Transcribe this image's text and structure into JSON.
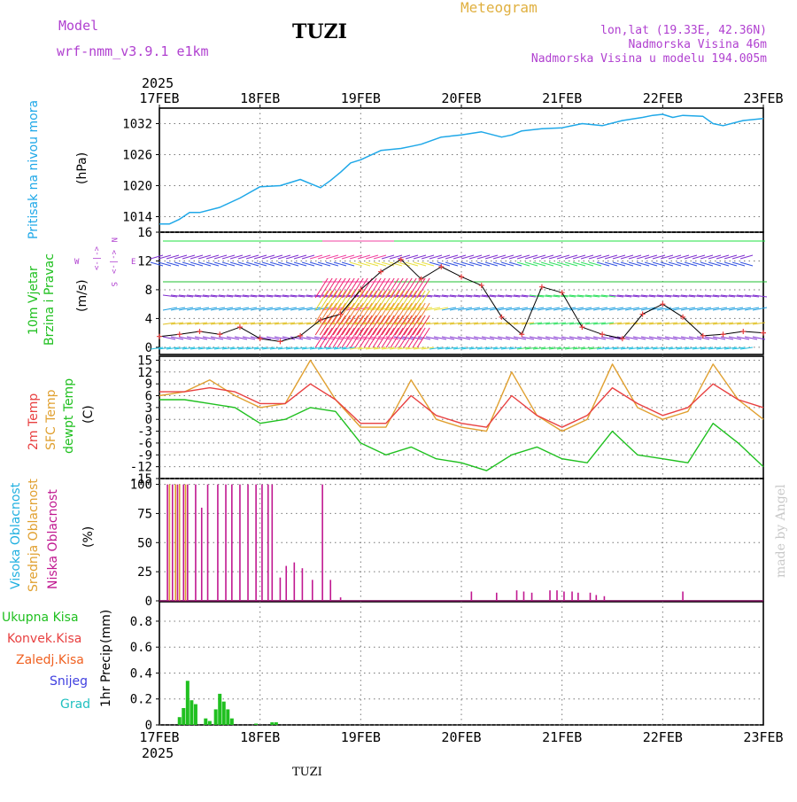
{
  "header": {
    "model_label": "Model",
    "model_name": "wrf-nmm_v3.9.1  e1km",
    "station": "TUZI",
    "chart_title": "Meteogram",
    "lonlat": "lon,lat (19.33E, 42.36N)",
    "elevation": "Nadmorska Visina 46m",
    "model_elevation": "Nadmorska Visina u modelu 194.005m",
    "year": "2025",
    "footer_station": "TUZI",
    "credit": "made by Angel"
  },
  "colors": {
    "pressure": "#1fa8e8",
    "temp2m": "#e84040",
    "sfc": "#e0a030",
    "dewpt": "#20c020",
    "cloud_high": "#20b0e0",
    "cloud_mid": "#e0a030",
    "cloud_low": "#c01890",
    "precip_total": "#20c020",
    "precip_conv": "#e84040",
    "precip_grid": "#f06020",
    "precip_snow": "#4040e0",
    "precip_hail": "#20c0c0",
    "header_purple": "#b040d0",
    "title_gold": "#e0b040"
  },
  "time_axis": {
    "ticks": [
      "17FEB",
      "18FEB",
      "19FEB",
      "20FEB",
      "21FEB",
      "22FEB",
      "23FEB"
    ]
  },
  "chart_data": [
    {
      "type": "line",
      "panel": "pressure",
      "ylabel": "Pritisak na nivou mora",
      "unit": "(hPa)",
      "yticks": [
        1014,
        1020,
        1026,
        1032
      ],
      "ylim": [
        1011,
        1035
      ],
      "grid": true,
      "x": [
        0,
        0.1,
        0.2,
        0.3,
        0.4,
        0.6,
        0.8,
        1.0,
        1.2,
        1.4,
        1.5,
        1.6,
        1.7,
        1.8,
        1.9,
        2.0,
        2.2,
        2.4,
        2.5,
        2.6,
        2.8,
        3.0,
        3.2,
        3.4,
        3.5,
        3.6,
        3.8,
        4.0,
        4.2,
        4.4,
        4.6,
        4.8,
        4.9,
        5.0,
        5.1,
        5.2,
        5.4,
        5.5,
        5.6,
        5.8,
        6.0
      ],
      "series": [
        {
          "name": "",
          "values": [
            1012.6,
            1012.6,
            1013.5,
            1014.8,
            1014.8,
            1015.8,
            1017.6,
            1019.8,
            1020.0,
            1021.2,
            1020.4,
            1019.6,
            1021.0,
            1022.6,
            1024.4,
            1025.0,
            1026.8,
            1027.2,
            1027.6,
            1028.0,
            1029.4,
            1029.8,
            1030.4,
            1029.4,
            1029.8,
            1030.6,
            1031.0,
            1031.2,
            1032.0,
            1031.6,
            1032.6,
            1033.2,
            1033.6,
            1033.8,
            1033.2,
            1033.6,
            1033.4,
            1032.0,
            1031.6,
            1032.6,
            1033.0
          ]
        }
      ]
    },
    {
      "type": "line",
      "panel": "wind",
      "ylabel": "10m Vjetar Brzina i Pravac",
      "unit": "(m/s)",
      "direction_legend": "W <-|-> E  S<-|->N",
      "yticks": [
        0,
        4,
        8,
        12,
        16
      ],
      "ylim": [
        -1,
        16
      ],
      "grid": true,
      "x": [
        0,
        0.2,
        0.4,
        0.6,
        0.8,
        1.0,
        1.2,
        1.4,
        1.6,
        1.8,
        2.0,
        2.2,
        2.4,
        2.6,
        2.8,
        3.0,
        3.2,
        3.4,
        3.6,
        3.8,
        4.0,
        4.2,
        4.4,
        4.6,
        4.8,
        5.0,
        5.2,
        5.4,
        5.6,
        5.8,
        6.0
      ],
      "series": [
        {
          "name": "",
          "values": [
            1.5,
            1.8,
            2.2,
            1.8,
            2.8,
            1.2,
            0.8,
            1.6,
            3.8,
            4.6,
            8.0,
            10.5,
            12.2,
            9.5,
            11.2,
            9.8,
            8.6,
            4.2,
            1.8,
            8.4,
            7.6,
            2.8,
            1.8,
            1.2,
            4.6,
            6.0,
            4.2,
            1.6,
            1.8,
            2.2,
            2.0
          ]
        }
      ]
    },
    {
      "type": "line",
      "panel": "temperature",
      "unit": "(C)",
      "yticks": [
        -15,
        -12,
        -9,
        -6,
        -3,
        0,
        3,
        6,
        9,
        12,
        15
      ],
      "ylim": [
        -15,
        16
      ],
      "grid": true,
      "x": [
        0,
        0.25,
        0.5,
        0.75,
        1.0,
        1.25,
        1.5,
        1.75,
        2.0,
        2.25,
        2.5,
        2.75,
        3.0,
        3.25,
        3.5,
        3.75,
        4.0,
        4.25,
        4.5,
        4.75,
        5.0,
        5.25,
        5.5,
        5.75,
        6.0
      ],
      "series": [
        {
          "name": "2m Temp",
          "values": [
            7,
            7,
            8,
            7,
            4,
            4,
            9,
            5,
            -1,
            -1,
            6,
            1,
            -1,
            -2,
            6,
            1,
            -2,
            1,
            8,
            4,
            1,
            3,
            9,
            5,
            3
          ]
        },
        {
          "name": "SFC Temp",
          "values": [
            6,
            7,
            10,
            6,
            3,
            4,
            15,
            5,
            -2,
            -2,
            10,
            0,
            -2,
            -3,
            12,
            1,
            -3,
            0,
            14,
            3,
            0,
            2,
            14,
            5,
            0
          ]
        },
        {
          "name": "dewpt Temp",
          "values": [
            5,
            5,
            4,
            3,
            -1,
            0,
            3,
            2,
            -6,
            -9,
            -7,
            -10,
            -11,
            -13,
            -9,
            -7,
            -10,
            -11,
            -3,
            -9,
            -10,
            -11,
            -1,
            -6,
            -12
          ]
        }
      ]
    },
    {
      "type": "bar",
      "panel": "cloud",
      "unit": "(%)",
      "yticks": [
        0,
        25,
        50,
        75,
        100
      ],
      "ylim": [
        0,
        105
      ],
      "grid": true,
      "series": [
        {
          "name": "Visoka Oblacnost",
          "x": [],
          "values": []
        },
        {
          "name": "Srednja Oblacnost",
          "x": [
            0.1,
            0.16,
            0.2,
            0.26
          ],
          "values": [
            100,
            100,
            100,
            100
          ]
        },
        {
          "name": "Niska Oblacnost",
          "x": [
            0.08,
            0.13,
            0.18,
            0.24,
            0.28,
            0.36,
            0.42,
            0.48,
            0.58,
            0.66,
            0.72,
            0.8,
            0.88,
            0.96,
            1.02,
            1.08,
            1.12,
            1.2,
            1.26,
            1.34,
            1.42,
            1.52,
            1.62,
            1.7,
            1.8,
            3.1,
            3.35,
            3.55,
            3.62,
            3.7,
            3.88,
            3.95,
            4.02,
            4.1,
            4.16,
            4.28,
            4.34,
            4.42,
            5.2
          ],
          "values": [
            100,
            100,
            100,
            100,
            100,
            100,
            80,
            100,
            100,
            100,
            100,
            100,
            100,
            100,
            100,
            100,
            100,
            20,
            30,
            33,
            28,
            18,
            100,
            18,
            3,
            8,
            7,
            9,
            8,
            7,
            9,
            9,
            8,
            8,
            7,
            7,
            5,
            4,
            8
          ]
        }
      ]
    },
    {
      "type": "bar",
      "panel": "precip",
      "ylabel": "1hr Precip",
      "unit": "(mm)",
      "yticks": [
        0,
        0.2,
        0.4,
        0.6,
        0.8
      ],
      "ylim": [
        0,
        0.95
      ],
      "grid": true,
      "series": [
        {
          "name": "Ukupna Kisa",
          "x": [
            0.2,
            0.24,
            0.28,
            0.32,
            0.36,
            0.46,
            0.5,
            0.56,
            0.6,
            0.64,
            0.68,
            0.72,
            0.96,
            1.12,
            1.16
          ],
          "values": [
            0.06,
            0.13,
            0.34,
            0.19,
            0.16,
            0.05,
            0.03,
            0.12,
            0.24,
            0.18,
            0.12,
            0.05,
            0.01,
            0.02,
            0.02
          ]
        },
        {
          "name": "Konvek.Kisa",
          "x": [],
          "values": []
        },
        {
          "name": "Zaledj.Kisa",
          "x": [],
          "values": []
        },
        {
          "name": "Snijeg",
          "x": [],
          "values": []
        },
        {
          "name": "Grad",
          "x": [],
          "values": []
        }
      ]
    }
  ],
  "panel_labels": {
    "pressure": "Pritisak na nivou mora",
    "wind_a": "10m Vjetar",
    "wind_b": "Brzina i Pravac",
    "temp_a": "2m Temp",
    "temp_b": "SFC Temp",
    "temp_c": "dewpt Temp",
    "cloud_a": "Visoka Oblacnost",
    "cloud_b": "Srednja Oblacnost",
    "cloud_c": "Niska Oblacnost",
    "precip_total": "Ukupna Kisa",
    "precip_conv": "Konvek.Kisa",
    "precip_grid": "Zaledj.Kisa",
    "precip_snow": "Snijeg",
    "precip_hail": "Grad",
    "precip_axis": "1hr Precip",
    "wind_dir_top": "N",
    "wind_dir_arrows": "<-|->",
    "wind_dir_w": "W",
    "wind_dir_e": "E",
    "wind_dir_s": "S"
  }
}
